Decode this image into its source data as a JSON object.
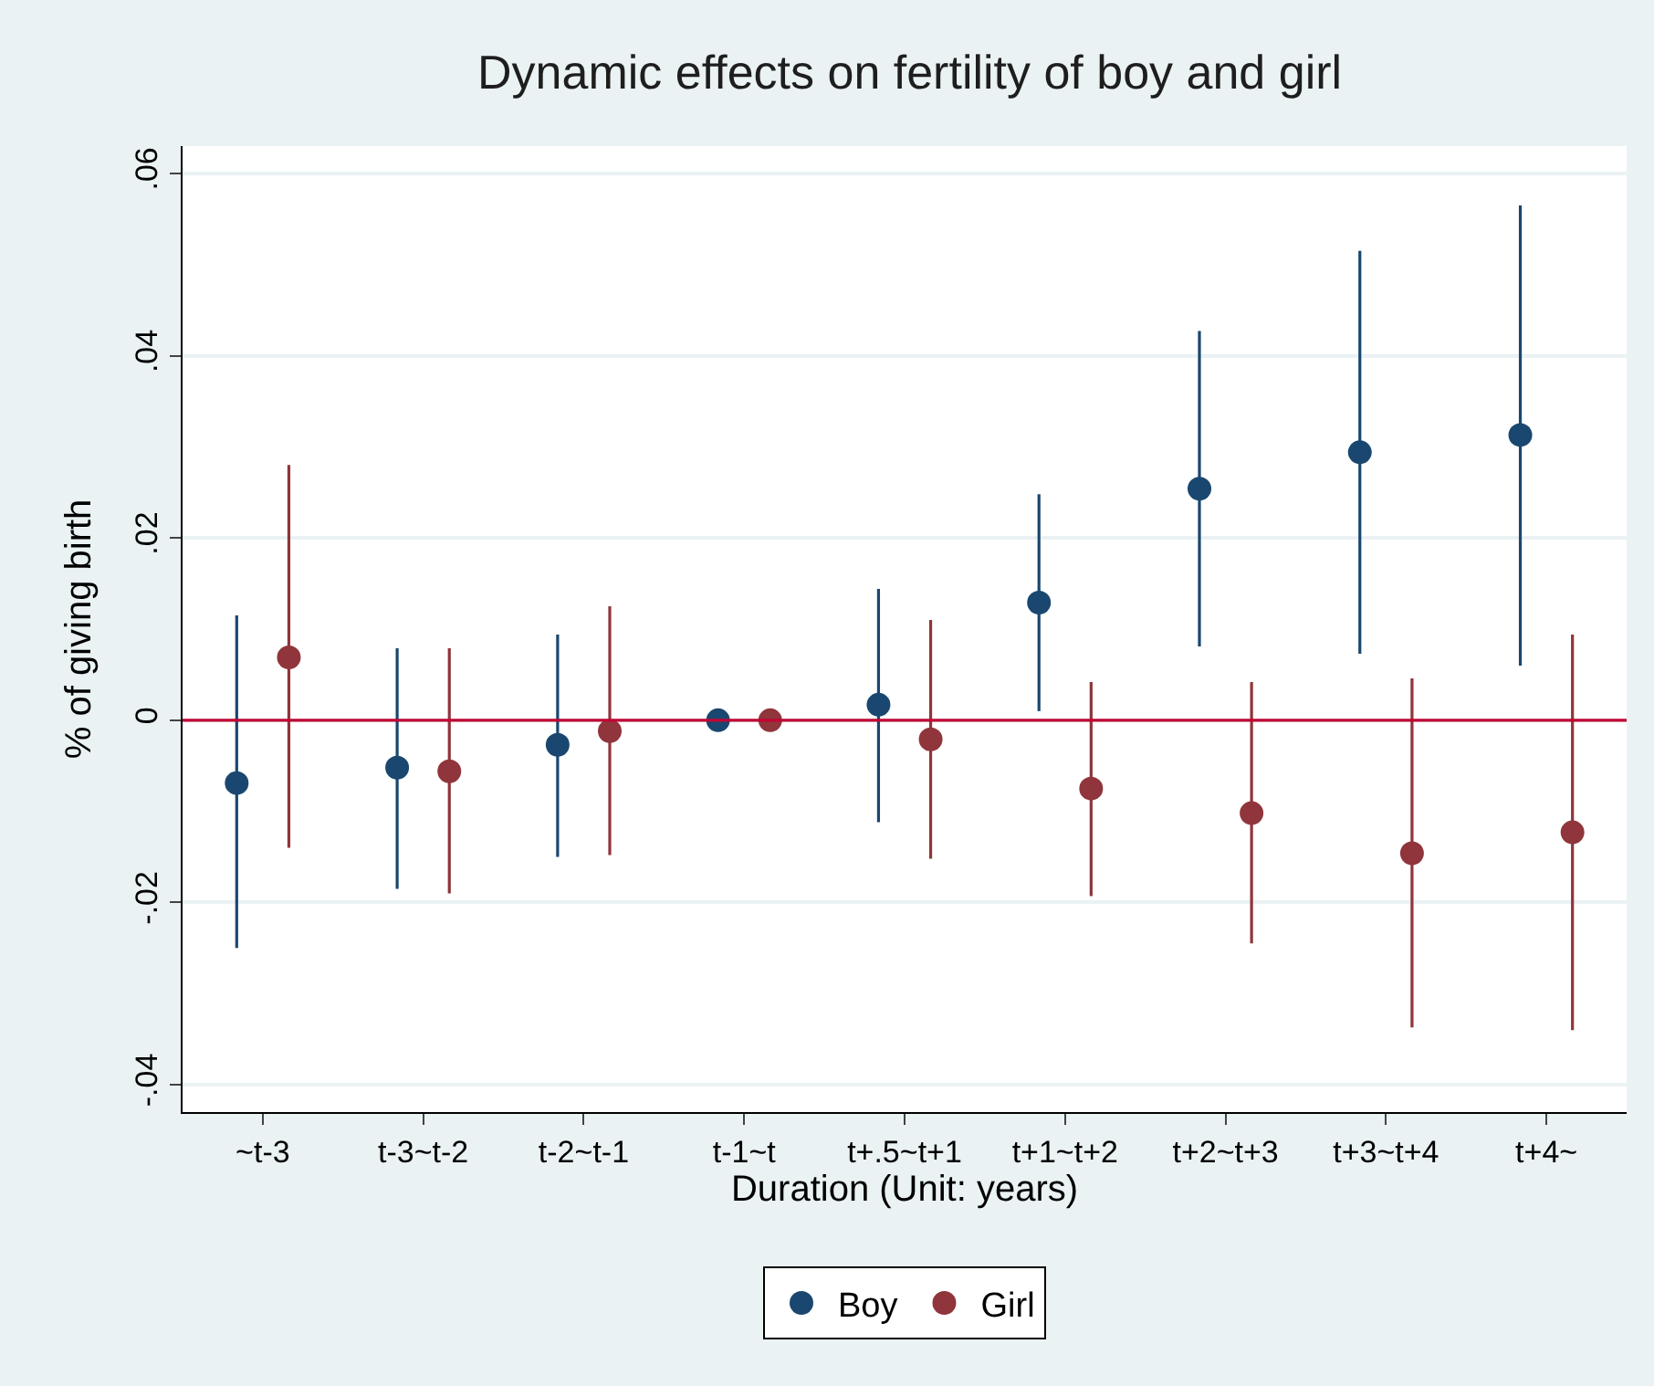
{
  "chart_data": {
    "type": "scatter",
    "title": "Dynamic effects on fertility of boy and girl",
    "xlabel": "Duration (Unit: years)",
    "ylabel": "% of giving birth",
    "categories": [
      "~t-3",
      "t-3~t-2",
      "t-2~t-1",
      "t-1~t",
      "t+.5~t+1",
      "t+1~t+2",
      "t+2~t+3",
      "t+3~t+4",
      "t+4~"
    ],
    "series": [
      {
        "name": "Boy",
        "color": "#1a476f",
        "values": [
          -0.0069,
          -0.0052,
          -0.0027,
          0,
          0.0017,
          0.0129,
          0.0254,
          0.0294,
          0.0313
        ],
        "errors": [
          [
            -0.025,
            0.0115
          ],
          [
            -0.0185,
            0.0079
          ],
          [
            -0.015,
            0.0094
          ],
          null,
          [
            -0.0112,
            0.0144
          ],
          [
            0.001,
            0.0248
          ],
          [
            0.0081,
            0.0427
          ],
          [
            0.0073,
            0.0515
          ],
          [
            0.006,
            0.0565
          ]
        ]
      },
      {
        "name": "Girl",
        "color": "#90353b",
        "values": [
          0.0069,
          -0.0056,
          -0.0012,
          0,
          -0.0021,
          -0.0075,
          -0.0102,
          -0.0146,
          -0.0123
        ],
        "errors": [
          [
            -0.014,
            0.028
          ],
          [
            -0.019,
            0.0079
          ],
          [
            -0.0148,
            0.0125
          ],
          null,
          [
            -0.0152,
            0.011
          ],
          [
            -0.0193,
            0.0042
          ],
          [
            -0.0245,
            0.0042
          ],
          [
            -0.0337,
            0.0046
          ],
          [
            -0.034,
            0.0094
          ]
        ]
      }
    ],
    "ylim": [
      -0.043,
      0.063
    ],
    "yticks": [
      {
        "value": -0.04,
        "label": "-.04"
      },
      {
        "value": -0.02,
        "label": "-.02"
      },
      {
        "value": 0,
        "label": "0"
      },
      {
        "value": 0.02,
        "label": ".02"
      },
      {
        "value": 0.04,
        "label": ".04"
      },
      {
        "value": 0.06,
        "label": ".06"
      }
    ],
    "ref_lines": [
      {
        "axis": "y",
        "value": 0,
        "color": "#c10534"
      }
    ],
    "grid": "y",
    "legend": "bottom",
    "marker": "circle"
  }
}
